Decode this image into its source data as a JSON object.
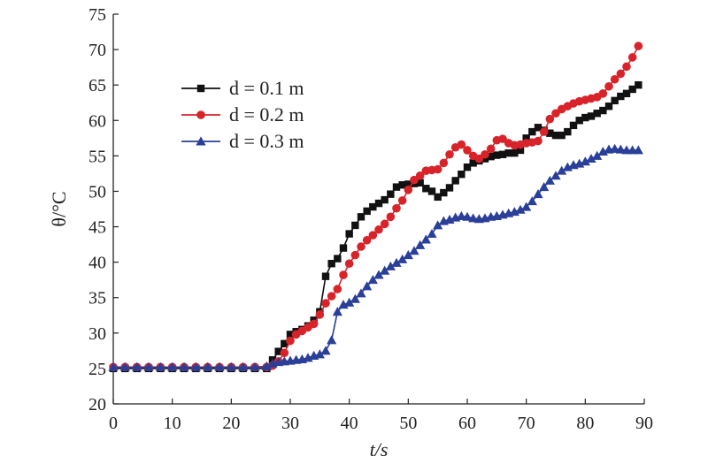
{
  "chart_data": {
    "type": "line",
    "xlabel": "t/s",
    "ylabel": "θ/°C",
    "xlim": [
      0,
      90
    ],
    "ylim": [
      20,
      75
    ],
    "xticks": [
      0,
      10,
      20,
      30,
      40,
      50,
      60,
      70,
      80,
      90
    ],
    "yticks": [
      20,
      25,
      30,
      35,
      40,
      45,
      50,
      55,
      60,
      65,
      70,
      75
    ],
    "grid": false,
    "legend_position": "upper-left",
    "series": [
      {
        "name": "d = 0.1 m",
        "marker": "square",
        "color": "#111111",
        "x": [
          0,
          2,
          4,
          6,
          8,
          10,
          12,
          14,
          16,
          18,
          20,
          22,
          24,
          26,
          27,
          28,
          29,
          30,
          31,
          32,
          33,
          34,
          35,
          36,
          37,
          38,
          39,
          40,
          41,
          42,
          43,
          44,
          45,
          46,
          47,
          48,
          49,
          50,
          51,
          52,
          53,
          54,
          55,
          56,
          57,
          58,
          59,
          60,
          61,
          62,
          63,
          64,
          65,
          66,
          67,
          68,
          69,
          70,
          71,
          72,
          73,
          74,
          75,
          76,
          77,
          78,
          79,
          80,
          81,
          82,
          83,
          84,
          85,
          86,
          87,
          88,
          89
        ],
        "y": [
          25,
          25,
          25,
          25,
          25,
          25,
          25,
          25,
          25,
          25,
          25,
          25,
          25,
          25,
          26.2,
          27.4,
          28.5,
          29.8,
          30.2,
          30.5,
          31,
          31.8,
          33,
          38,
          39.8,
          40.5,
          42,
          44,
          45.2,
          46.4,
          47.2,
          47.8,
          48.3,
          48.8,
          49.6,
          50.6,
          50.9,
          51,
          51.1,
          51.2,
          50.4,
          50,
          49.2,
          49.8,
          50.5,
          51.5,
          52.4,
          53.4,
          54,
          54.3,
          54.6,
          54.9,
          55.1,
          55.2,
          55.4,
          55.4,
          55.8,
          57.5,
          58.4,
          59,
          58.6,
          58.2,
          57.9,
          57.9,
          58.4,
          59.3,
          60,
          60.4,
          60.6,
          61,
          61.4,
          62,
          62.8,
          63.4,
          63.8,
          64.4,
          65
        ]
      },
      {
        "name": "d = 0.2 m",
        "marker": "circle",
        "color": "#d8232a",
        "x": [
          0,
          2,
          4,
          6,
          8,
          10,
          12,
          14,
          16,
          18,
          20,
          22,
          24,
          26,
          27,
          28,
          29,
          30,
          31,
          32,
          33,
          34,
          35,
          36,
          37,
          38,
          39,
          40,
          41,
          42,
          43,
          44,
          45,
          46,
          47,
          48,
          49,
          50,
          51,
          52,
          53,
          54,
          55,
          56,
          57,
          58,
          59,
          60,
          61,
          62,
          63,
          64,
          65,
          66,
          67,
          68,
          69,
          70,
          71,
          72,
          73,
          74,
          75,
          76,
          77,
          78,
          79,
          80,
          81,
          82,
          83,
          84,
          85,
          86,
          87,
          88,
          89
        ],
        "y": [
          25.2,
          25.2,
          25.2,
          25.2,
          25.2,
          25.2,
          25.2,
          25.2,
          25.2,
          25.2,
          25.2,
          25.2,
          25.2,
          25.2,
          25.4,
          26,
          27.2,
          28.9,
          29.8,
          30.3,
          30.8,
          31.3,
          32.6,
          34.2,
          35.2,
          36.2,
          38.2,
          39.8,
          41,
          42.2,
          43.1,
          43.8,
          44.6,
          45.4,
          46.4,
          47.6,
          48.7,
          50.2,
          51.6,
          52.2,
          52.9,
          53,
          53.1,
          54,
          55.2,
          56.2,
          56.6,
          55.8,
          55,
          54.6,
          55.2,
          56,
          57.2,
          57.4,
          56.8,
          56.5,
          56.6,
          56.8,
          56.9,
          57.1,
          58.4,
          60.2,
          61,
          61.6,
          62,
          62.4,
          62.7,
          62.9,
          63.1,
          63.3,
          63.8,
          64.8,
          65.8,
          66.6,
          67.6,
          68.9,
          70.5
        ]
      },
      {
        "name": "d = 0.3 m",
        "marker": "triangle",
        "color": "#2a3f98",
        "x": [
          0,
          2,
          4,
          6,
          8,
          10,
          12,
          14,
          16,
          18,
          20,
          22,
          24,
          26,
          27,
          28,
          29,
          30,
          31,
          32,
          33,
          34,
          35,
          36,
          37,
          38,
          39,
          40,
          41,
          42,
          43,
          44,
          45,
          46,
          47,
          48,
          49,
          50,
          51,
          52,
          53,
          54,
          55,
          56,
          57,
          58,
          59,
          60,
          61,
          62,
          63,
          64,
          65,
          66,
          67,
          68,
          69,
          70,
          71,
          72,
          73,
          74,
          75,
          76,
          77,
          78,
          79,
          80,
          81,
          82,
          83,
          84,
          85,
          86,
          87,
          88,
          89
        ],
        "y": [
          25.2,
          25.2,
          25.2,
          25.2,
          25.2,
          25.2,
          25.2,
          25.2,
          25.2,
          25.2,
          25.2,
          25.2,
          25.2,
          25.3,
          25.7,
          25.9,
          26,
          26.1,
          26.2,
          26.3,
          26.5,
          26.8,
          27,
          27.5,
          29,
          33,
          34,
          34.3,
          34.8,
          35.6,
          36.6,
          37.5,
          38.2,
          38.8,
          39.4,
          39.9,
          40.4,
          41,
          41.6,
          42.4,
          43.2,
          44,
          45.2,
          45.8,
          46,
          46.3,
          46.5,
          46.4,
          46.2,
          46.1,
          46.2,
          46.4,
          46.5,
          46.7,
          46.9,
          47.1,
          47.4,
          47.8,
          48.6,
          49.6,
          50.6,
          51.5,
          52.2,
          52.9,
          53.4,
          53.7,
          53.9,
          54.2,
          54.6,
          55,
          55.6,
          55.9,
          56,
          55.9,
          55.8,
          55.8,
          55.8
        ]
      }
    ]
  }
}
